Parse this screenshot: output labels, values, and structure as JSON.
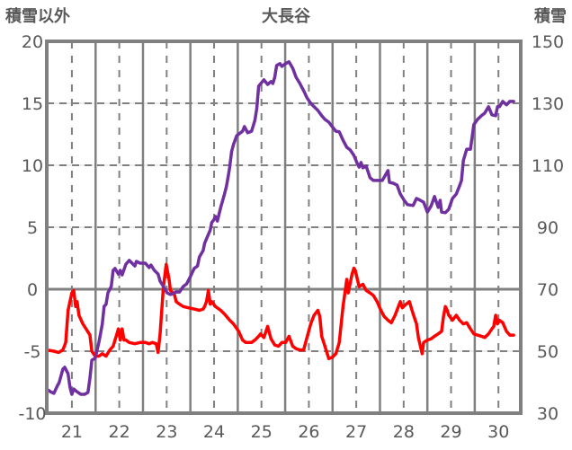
{
  "chart_data": {
    "type": "line",
    "title": "大長谷",
    "ylabel_left": "積雪以外",
    "ylabel_right": "積雪",
    "xlim": [
      20.47,
      30.47
    ],
    "ylim_left": [
      -10,
      20
    ],
    "ylim_right": [
      30,
      150
    ],
    "x_ticks": [
      "21",
      "22",
      "23",
      "24",
      "25",
      "26",
      "27",
      "28",
      "29",
      "30"
    ],
    "y_ticks_left": [
      "20",
      "15",
      "10",
      "5",
      "0",
      "-5",
      "-10"
    ],
    "y_ticks_right": [
      "150",
      "130",
      "110",
      "90",
      "70",
      "50",
      "30"
    ],
    "grid": true,
    "colors": {
      "frame": "#808080",
      "text": "#595959"
    },
    "series": [
      {
        "name": "積雪以外",
        "axis": "left",
        "color": "#FF0000",
        "points": [
          [
            20.47,
            -4.9
          ],
          [
            20.62,
            -5.0
          ],
          [
            20.72,
            -5.1
          ],
          [
            20.81,
            -4.9
          ],
          [
            20.87,
            -4.3
          ],
          [
            20.92,
            -1.7
          ],
          [
            21.0,
            -0.3
          ],
          [
            21.04,
            -0.1
          ],
          [
            21.08,
            -1.4
          ],
          [
            21.11,
            -1.0
          ],
          [
            21.15,
            -2.1
          ],
          [
            21.23,
            -2.8
          ],
          [
            21.3,
            -3.2
          ],
          [
            21.38,
            -3.7
          ],
          [
            21.42,
            -5.0
          ],
          [
            21.49,
            -5.4
          ],
          [
            21.57,
            -5.4
          ],
          [
            21.64,
            -5.2
          ],
          [
            21.72,
            -5.4
          ],
          [
            21.8,
            -4.9
          ],
          [
            21.87,
            -4.6
          ],
          [
            21.95,
            -3.6
          ],
          [
            21.98,
            -3.2
          ],
          [
            22.02,
            -4.1
          ],
          [
            22.06,
            -3.2
          ],
          [
            22.1,
            -4.1
          ],
          [
            22.14,
            -4.1
          ],
          [
            22.21,
            -4.3
          ],
          [
            22.33,
            -4.4
          ],
          [
            22.44,
            -4.3
          ],
          [
            22.55,
            -4.3
          ],
          [
            22.63,
            -4.4
          ],
          [
            22.7,
            -4.3
          ],
          [
            22.78,
            -4.4
          ],
          [
            22.82,
            -5.1
          ],
          [
            22.86,
            -3.6
          ],
          [
            22.93,
            0.1
          ],
          [
            22.99,
            2.0
          ],
          [
            23.05,
            0.8
          ],
          [
            23.08,
            -0.1
          ],
          [
            23.16,
            -0.4
          ],
          [
            23.2,
            -1.0
          ],
          [
            23.27,
            -1.2
          ],
          [
            23.35,
            -1.4
          ],
          [
            23.46,
            -1.5
          ],
          [
            23.58,
            -1.6
          ],
          [
            23.69,
            -1.7
          ],
          [
            23.77,
            -1.6
          ],
          [
            23.8,
            -1.4
          ],
          [
            23.84,
            -1.0
          ],
          [
            23.88,
            -0.1
          ],
          [
            23.92,
            -1.2
          ],
          [
            23.95,
            -1.0
          ],
          [
            24.03,
            -1.4
          ],
          [
            24.14,
            -1.7
          ],
          [
            24.22,
            -2.0
          ],
          [
            24.33,
            -2.5
          ],
          [
            24.41,
            -2.8
          ],
          [
            24.52,
            -3.4
          ],
          [
            24.6,
            -4.1
          ],
          [
            24.67,
            -4.3
          ],
          [
            24.79,
            -4.3
          ],
          [
            24.86,
            -4.1
          ],
          [
            24.94,
            -3.8
          ],
          [
            24.98,
            -3.6
          ],
          [
            25.05,
            -3.9
          ],
          [
            25.13,
            -3.0
          ],
          [
            25.2,
            -4.0
          ],
          [
            25.28,
            -4.5
          ],
          [
            25.36,
            -4.6
          ],
          [
            25.43,
            -4.3
          ],
          [
            25.51,
            -4.3
          ],
          [
            25.58,
            -3.8
          ],
          [
            25.66,
            -4.6
          ],
          [
            25.73,
            -4.8
          ],
          [
            25.81,
            -4.9
          ],
          [
            25.89,
            -4.9
          ],
          [
            25.96,
            -3.9
          ],
          [
            26.04,
            -2.8
          ],
          [
            26.11,
            -2.1
          ],
          [
            26.19,
            -1.7
          ],
          [
            26.23,
            -2.2
          ],
          [
            26.27,
            -3.8
          ],
          [
            26.34,
            -4.6
          ],
          [
            26.42,
            -5.6
          ],
          [
            26.49,
            -5.5
          ],
          [
            26.57,
            -5.2
          ],
          [
            26.64,
            -4.3
          ],
          [
            26.72,
            -1.4
          ],
          [
            26.8,
            0.8
          ],
          [
            26.83,
            -0.3
          ],
          [
            26.91,
            1.2
          ],
          [
            26.95,
            1.7
          ],
          [
            26.98,
            1.5
          ],
          [
            27.06,
            0.2
          ],
          [
            27.14,
            0.4
          ],
          [
            27.21,
            -0.1
          ],
          [
            27.29,
            -0.3
          ],
          [
            27.36,
            -0.5
          ],
          [
            27.44,
            -1.0
          ],
          [
            27.52,
            -1.7
          ],
          [
            27.59,
            -2.2
          ],
          [
            27.67,
            -2.5
          ],
          [
            27.74,
            -2.7
          ],
          [
            27.82,
            -2.1
          ],
          [
            27.89,
            -1.4
          ],
          [
            27.93,
            -1.0
          ],
          [
            27.97,
            -1.5
          ],
          [
            28.05,
            -1.2
          ],
          [
            28.12,
            -1.0
          ],
          [
            28.2,
            -2.0
          ],
          [
            28.27,
            -2.8
          ],
          [
            28.31,
            -3.9
          ],
          [
            28.39,
            -5.2
          ],
          [
            28.42,
            -4.3
          ],
          [
            28.5,
            -4.1
          ],
          [
            28.58,
            -4.0
          ],
          [
            28.65,
            -3.8
          ],
          [
            28.73,
            -3.6
          ],
          [
            28.8,
            -3.4
          ],
          [
            28.84,
            -2.2
          ],
          [
            28.88,
            -1.4
          ],
          [
            28.92,
            -1.7
          ],
          [
            28.95,
            -2.1
          ],
          [
            29.03,
            -2.5
          ],
          [
            29.11,
            -2.1
          ],
          [
            29.18,
            -2.5
          ],
          [
            29.26,
            -2.8
          ],
          [
            29.33,
            -2.7
          ],
          [
            29.41,
            -3.2
          ],
          [
            29.48,
            -3.6
          ],
          [
            29.56,
            -3.7
          ],
          [
            29.64,
            -3.8
          ],
          [
            29.71,
            -3.9
          ],
          [
            29.79,
            -3.6
          ],
          [
            29.86,
            -3.2
          ],
          [
            29.9,
            -3.0
          ],
          [
            29.94,
            -2.1
          ],
          [
            29.98,
            -2.8
          ],
          [
            30.02,
            -2.5
          ],
          [
            30.09,
            -2.7
          ],
          [
            30.17,
            -3.4
          ],
          [
            30.24,
            -3.7
          ],
          [
            30.32,
            -3.7
          ]
        ]
      },
      {
        "name": "積雪",
        "axis": "right",
        "color": "#7030A0",
        "points": [
          [
            20.47,
            37.8
          ],
          [
            20.55,
            36.9
          ],
          [
            20.62,
            36.4
          ],
          [
            20.7,
            39.0
          ],
          [
            20.73,
            39.8
          ],
          [
            20.81,
            44.2
          ],
          [
            20.85,
            44.8
          ],
          [
            20.92,
            42.7
          ],
          [
            20.96,
            38.4
          ],
          [
            21.0,
            36.1
          ],
          [
            21.04,
            37.8
          ],
          [
            21.11,
            36.9
          ],
          [
            21.19,
            36.1
          ],
          [
            21.27,
            36.1
          ],
          [
            21.34,
            36.7
          ],
          [
            21.38,
            41.3
          ],
          [
            21.42,
            47.1
          ],
          [
            21.49,
            47.7
          ],
          [
            21.57,
            52.9
          ],
          [
            21.64,
            58.7
          ],
          [
            21.68,
            64.5
          ],
          [
            21.72,
            65.1
          ],
          [
            21.76,
            68.8
          ],
          [
            21.83,
            70.9
          ],
          [
            21.87,
            76.1
          ],
          [
            21.91,
            76.7
          ],
          [
            21.98,
            74.9
          ],
          [
            22.02,
            76.1
          ],
          [
            22.06,
            74.6
          ],
          [
            22.14,
            78.1
          ],
          [
            22.21,
            79.3
          ],
          [
            22.29,
            78.1
          ],
          [
            22.33,
            77.5
          ],
          [
            22.36,
            79.0
          ],
          [
            22.44,
            78.4
          ],
          [
            22.55,
            78.4
          ],
          [
            22.63,
            77.0
          ],
          [
            22.67,
            77.8
          ],
          [
            22.74,
            76.1
          ],
          [
            22.82,
            74.9
          ],
          [
            22.86,
            72.6
          ],
          [
            22.93,
            70.9
          ],
          [
            23.01,
            68.8
          ],
          [
            23.08,
            68.3
          ],
          [
            23.16,
            68.8
          ],
          [
            23.2,
            69.1
          ],
          [
            23.27,
            69.1
          ],
          [
            23.35,
            70.9
          ],
          [
            23.42,
            71.7
          ],
          [
            23.5,
            74.1
          ],
          [
            23.58,
            76.7
          ],
          [
            23.65,
            77.5
          ],
          [
            23.69,
            80.4
          ],
          [
            23.77,
            82.5
          ],
          [
            23.8,
            84.8
          ],
          [
            23.88,
            87.7
          ],
          [
            23.92,
            89.1
          ],
          [
            23.95,
            91.5
          ],
          [
            23.99,
            92.3
          ],
          [
            24.03,
            93.5
          ],
          [
            24.07,
            92.0
          ],
          [
            24.14,
            96.4
          ],
          [
            24.22,
            100.7
          ],
          [
            24.26,
            103.1
          ],
          [
            24.3,
            106.5
          ],
          [
            24.33,
            109.4
          ],
          [
            24.37,
            114.4
          ],
          [
            24.41,
            116.7
          ],
          [
            24.48,
            119.6
          ],
          [
            24.56,
            120.5
          ],
          [
            24.6,
            121.0
          ],
          [
            24.64,
            122.5
          ],
          [
            24.71,
            120.5
          ],
          [
            24.79,
            121.0
          ],
          [
            24.86,
            124.5
          ],
          [
            24.9,
            128.3
          ],
          [
            24.94,
            135.5
          ],
          [
            25.02,
            137.0
          ],
          [
            25.05,
            137.6
          ],
          [
            25.13,
            136.1
          ],
          [
            25.2,
            137.0
          ],
          [
            25.24,
            136.4
          ],
          [
            25.28,
            138.4
          ],
          [
            25.32,
            142.2
          ],
          [
            25.39,
            142.8
          ],
          [
            25.43,
            141.9
          ],
          [
            25.51,
            142.8
          ],
          [
            25.58,
            143.4
          ],
          [
            25.66,
            141.3
          ],
          [
            25.73,
            138.4
          ],
          [
            25.81,
            136.4
          ],
          [
            25.89,
            134.1
          ],
          [
            25.96,
            131.8
          ],
          [
            26.04,
            130.0
          ],
          [
            26.11,
            128.9
          ],
          [
            26.19,
            127.7
          ],
          [
            26.27,
            126.0
          ],
          [
            26.34,
            124.8
          ],
          [
            26.42,
            123.9
          ],
          [
            26.49,
            122.5
          ],
          [
            26.57,
            121.0
          ],
          [
            26.64,
            120.8
          ],
          [
            26.72,
            118.1
          ],
          [
            26.8,
            115.8
          ],
          [
            26.87,
            115.0
          ],
          [
            26.95,
            113.2
          ],
          [
            27.02,
            110.6
          ],
          [
            27.06,
            109.4
          ],
          [
            27.1,
            110.9
          ],
          [
            27.14,
            109.2
          ],
          [
            27.21,
            109.7
          ],
          [
            27.29,
            106.0
          ],
          [
            27.36,
            105.1
          ],
          [
            27.44,
            105.1
          ],
          [
            27.55,
            105.1
          ],
          [
            27.67,
            108.3
          ],
          [
            27.7,
            104.5
          ],
          [
            27.78,
            104.2
          ],
          [
            27.86,
            103.6
          ],
          [
            27.93,
            100.7
          ],
          [
            28.01,
            98.7
          ],
          [
            28.08,
            97.3
          ],
          [
            28.2,
            97.0
          ],
          [
            28.27,
            99.3
          ],
          [
            28.35,
            98.7
          ],
          [
            28.42,
            98.1
          ],
          [
            28.5,
            94.9
          ],
          [
            28.58,
            96.9
          ],
          [
            28.65,
            99.9
          ],
          [
            28.73,
            96.4
          ],
          [
            28.77,
            98.7
          ],
          [
            28.8,
            94.9
          ],
          [
            28.88,
            94.7
          ],
          [
            28.95,
            95.8
          ],
          [
            29.03,
            99.3
          ],
          [
            29.11,
            100.7
          ],
          [
            29.18,
            103.4
          ],
          [
            29.22,
            105.1
          ],
          [
            29.26,
            111.5
          ],
          [
            29.33,
            115.2
          ],
          [
            29.41,
            115.2
          ],
          [
            29.45,
            119.6
          ],
          [
            29.48,
            123.1
          ],
          [
            29.56,
            124.8
          ],
          [
            29.64,
            126.0
          ],
          [
            29.71,
            126.8
          ],
          [
            29.79,
            128.9
          ],
          [
            29.86,
            126.3
          ],
          [
            29.94,
            126.0
          ],
          [
            29.98,
            128.9
          ],
          [
            30.02,
            128.9
          ],
          [
            30.09,
            130.6
          ],
          [
            30.17,
            129.5
          ],
          [
            30.24,
            130.6
          ],
          [
            30.32,
            130.6
          ]
        ]
      }
    ]
  }
}
